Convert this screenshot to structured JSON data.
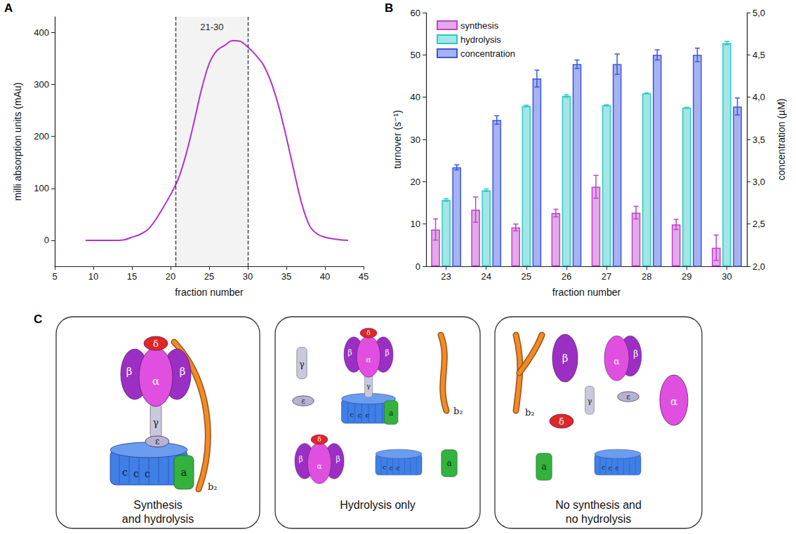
{
  "chart_data": [
    {
      "panel": "A",
      "type": "line",
      "color": "#b030d0",
      "x": [
        9,
        10,
        11,
        12,
        13,
        14,
        15,
        16,
        17,
        18,
        19,
        20,
        21,
        22,
        23,
        24,
        25,
        26,
        27,
        28,
        29,
        30,
        31,
        32,
        33,
        34,
        35,
        36,
        37,
        38,
        39,
        40,
        41,
        42,
        43
      ],
      "values": [
        0,
        0,
        0,
        0,
        0,
        1,
        6,
        11,
        20,
        38,
        62,
        88,
        118,
        165,
        225,
        290,
        340,
        365,
        375,
        384,
        383,
        372,
        357,
        338,
        305,
        258,
        198,
        132,
        70,
        28,
        12,
        6,
        3,
        1,
        0
      ],
      "x_label": "fraction number",
      "y_label": "milli absorption units (mAu)",
      "xlim": [
        5,
        45
      ],
      "xticks": [
        5,
        10,
        15,
        20,
        25,
        30,
        35,
        40,
        45
      ],
      "ylim": [
        -50,
        430
      ],
      "yticks": [
        0,
        100,
        200,
        300,
        400
      ],
      "grid": false,
      "annotations": [
        {
          "x_range": [
            20.7,
            30
          ],
          "text": "21-30",
          "line_style": "dashed"
        }
      ]
    },
    {
      "panel": "B",
      "type": "bar",
      "categories": [
        "23",
        "24",
        "25",
        "26",
        "27",
        "28",
        "29",
        "30"
      ],
      "series": [
        {
          "name": "synthesis",
          "color": "#c040d0",
          "values": [
            8.7,
            13.4,
            9.2,
            12.6,
            18.8,
            12.7,
            9.9,
            4.4
          ],
          "errors": [
            2.5,
            3,
            0.8,
            0.9,
            2.7,
            1.5,
            1.2,
            3
          ]
        },
        {
          "name": "hydrolysis",
          "color": "#30c8c8",
          "values": [
            15.7,
            18,
            37.9,
            40.3,
            38.1,
            40.9,
            37.5,
            52.8
          ],
          "errors": [
            0.3,
            0.3,
            0.2,
            0.3,
            0.1,
            0.1,
            0.1,
            0.4
          ]
        },
        {
          "name": "concentration",
          "color": "#3a55e0",
          "axis": "y2",
          "values": [
            3.17,
            3.73,
            4.22,
            4.39,
            4.39,
            4.5,
            4.5,
            3.89
          ],
          "errors": [
            0.03,
            0.05,
            0.1,
            0.05,
            0.12,
            0.06,
            0.08,
            0.1
          ]
        }
      ],
      "x_label": "fraction number",
      "y_label": "turnover (s⁻¹)",
      "y2_label": "concentration (µM)",
      "ylim": [
        0,
        60
      ],
      "yticks": [
        0,
        10,
        20,
        30,
        40,
        50,
        60
      ],
      "y2lim": [
        2,
        5
      ],
      "y2ticks": [
        {
          "value": 2,
          "label": "2,0"
        },
        {
          "value": 2.5,
          "label": "2,5"
        },
        {
          "value": 3,
          "label": "3,0"
        },
        {
          "value": 3.5,
          "label": "3,5"
        },
        {
          "value": 4,
          "label": "4,0"
        },
        {
          "value": 4.5,
          "label": "4,5"
        },
        {
          "value": 5,
          "label": "5,0"
        }
      ],
      "legend": "upper left",
      "grid": false
    }
  ],
  "diagram": {
    "panel": "C",
    "subunits": {
      "alpha": "α",
      "beta": "β",
      "gamma": "γ",
      "delta": "δ",
      "epsilon": "ε",
      "c": "c",
      "a": "a",
      "b2": "b₂"
    },
    "boxes": [
      {
        "caption": [
          "Synthesis",
          "and hydrolysis"
        ]
      },
      {
        "caption": [
          "Hydrolysis only"
        ]
      },
      {
        "caption": [
          "No synthesis and",
          "no hydrolysis"
        ]
      }
    ]
  }
}
